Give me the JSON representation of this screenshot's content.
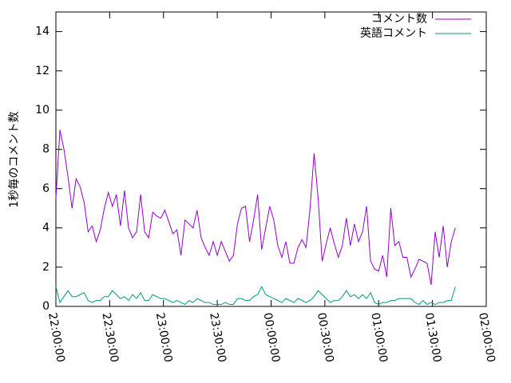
{
  "chart_data": {
    "type": "line",
    "y_label": "1秒毎のコメント数",
    "x": [
      "22:00:00",
      "22:02:15",
      "22:04:30",
      "22:06:45",
      "22:09:00",
      "22:11:15",
      "22:13:30",
      "22:15:45",
      "22:18:00",
      "22:20:15",
      "22:22:30",
      "22:24:45",
      "22:27:00",
      "22:29:15",
      "22:31:30",
      "22:33:45",
      "22:36:00",
      "22:38:15",
      "22:40:30",
      "22:42:45",
      "22:45:00",
      "22:47:15",
      "22:49:30",
      "22:51:45",
      "22:54:00",
      "22:56:15",
      "22:58:30",
      "23:00:45",
      "23:03:00",
      "23:05:15",
      "23:07:30",
      "23:09:45",
      "23:12:00",
      "23:14:15",
      "23:16:30",
      "23:18:45",
      "23:21:00",
      "23:23:15",
      "23:25:30",
      "23:27:45",
      "23:30:00",
      "23:32:15",
      "23:34:30",
      "23:36:45",
      "23:39:00",
      "23:41:15",
      "23:43:30",
      "23:45:45",
      "23:48:00",
      "23:50:15",
      "23:52:30",
      "23:54:45",
      "23:57:00",
      "23:59:15",
      "00:01:30",
      "00:03:45",
      "00:06:00",
      "00:08:15",
      "00:10:30",
      "00:12:45",
      "00:15:00",
      "00:17:15",
      "00:19:30",
      "00:21:45",
      "00:24:00",
      "00:26:15",
      "00:28:30",
      "00:30:45",
      "00:33:00",
      "00:35:15",
      "00:37:30",
      "00:39:45",
      "00:42:00",
      "00:44:15",
      "00:46:30",
      "00:48:45",
      "00:51:00",
      "00:53:15",
      "00:55:30",
      "00:57:45",
      "01:00:00",
      "01:02:15",
      "01:04:30",
      "01:06:45",
      "01:09:00",
      "01:11:15",
      "01:13:30",
      "01:15:45",
      "01:18:00",
      "01:20:15",
      "01:22:30",
      "01:24:45",
      "01:27:00",
      "01:29:15",
      "01:31:30",
      "01:33:45",
      "01:36:00",
      "01:38:15",
      "01:40:30",
      "01:42:45"
    ],
    "series": [
      {
        "name": "コメント数",
        "color": "#9400d3",
        "values": [
          5.5,
          9.0,
          8.0,
          6.6,
          5.0,
          6.5,
          6.1,
          5.3,
          3.8,
          4.1,
          3.3,
          3.9,
          5.0,
          5.8,
          5.1,
          5.7,
          4.1,
          5.9,
          4.0,
          3.5,
          3.8,
          5.7,
          3.8,
          3.5,
          4.8,
          4.6,
          4.5,
          4.9,
          4.3,
          3.7,
          3.9,
          2.6,
          4.4,
          4.2,
          4.0,
          4.9,
          3.5,
          3.0,
          2.6,
          3.3,
          2.6,
          3.3,
          2.8,
          2.3,
          2.6,
          4.2,
          5.0,
          5.1,
          3.3,
          4.4,
          5.7,
          2.9,
          4.0,
          5.1,
          4.4,
          3.1,
          2.5,
          3.3,
          2.2,
          2.2,
          3.0,
          3.4,
          3.0,
          5.0,
          7.8,
          5.5,
          2.3,
          3.2,
          4.0,
          3.2,
          2.5,
          3.1,
          4.5,
          3.1,
          4.2,
          3.3,
          3.8,
          5.1,
          2.3,
          1.9,
          1.8,
          2.6,
          1.5,
          5.0,
          3.1,
          3.3,
          2.5,
          2.5,
          1.5,
          1.9,
          2.4,
          2.3,
          2.2,
          1.1,
          3.8,
          2.5,
          4.1,
          2.0,
          3.3,
          4.0
        ]
      },
      {
        "name": "英語コメント",
        "color": "#009e73",
        "values": [
          1.0,
          0.2,
          0.5,
          0.8,
          0.5,
          0.5,
          0.6,
          0.7,
          0.3,
          0.2,
          0.3,
          0.3,
          0.5,
          0.5,
          0.8,
          0.6,
          0.4,
          0.5,
          0.3,
          0.6,
          0.4,
          0.7,
          0.3,
          0.3,
          0.6,
          0.5,
          0.4,
          0.4,
          0.3,
          0.2,
          0.3,
          0.2,
          0.1,
          0.3,
          0.2,
          0.4,
          0.3,
          0.2,
          0.2,
          0.1,
          0.1,
          0.1,
          0.2,
          0.1,
          0.1,
          0.4,
          0.4,
          0.3,
          0.3,
          0.5,
          0.6,
          1.0,
          0.6,
          0.5,
          0.4,
          0.3,
          0.2,
          0.4,
          0.3,
          0.2,
          0.4,
          0.3,
          0.2,
          0.3,
          0.5,
          0.8,
          0.6,
          0.4,
          0.2,
          0.3,
          0.3,
          0.5,
          0.8,
          0.5,
          0.6,
          0.4,
          0.6,
          0.4,
          0.7,
          0.2,
          0.1,
          0.2,
          0.2,
          0.3,
          0.3,
          0.4,
          0.4,
          0.4,
          0.4,
          0.2,
          0.1,
          0.3,
          0.1,
          0.2,
          0.1,
          0.2,
          0.2,
          0.3,
          0.3,
          1.0
        ]
      }
    ],
    "xlim": [
      "22:00:00",
      "02:00:00"
    ],
    "xticks": [
      "22:00:00",
      "22:30:00",
      "23:00:00",
      "23:30:00",
      "00:00:00",
      "00:30:00",
      "01:00:00",
      "01:30:00",
      "02:00:00"
    ],
    "ylim": [
      0,
      15
    ],
    "yticks": [
      0,
      2,
      4,
      6,
      8,
      10,
      12,
      14
    ],
    "legend": "top-right",
    "grid": false
  }
}
